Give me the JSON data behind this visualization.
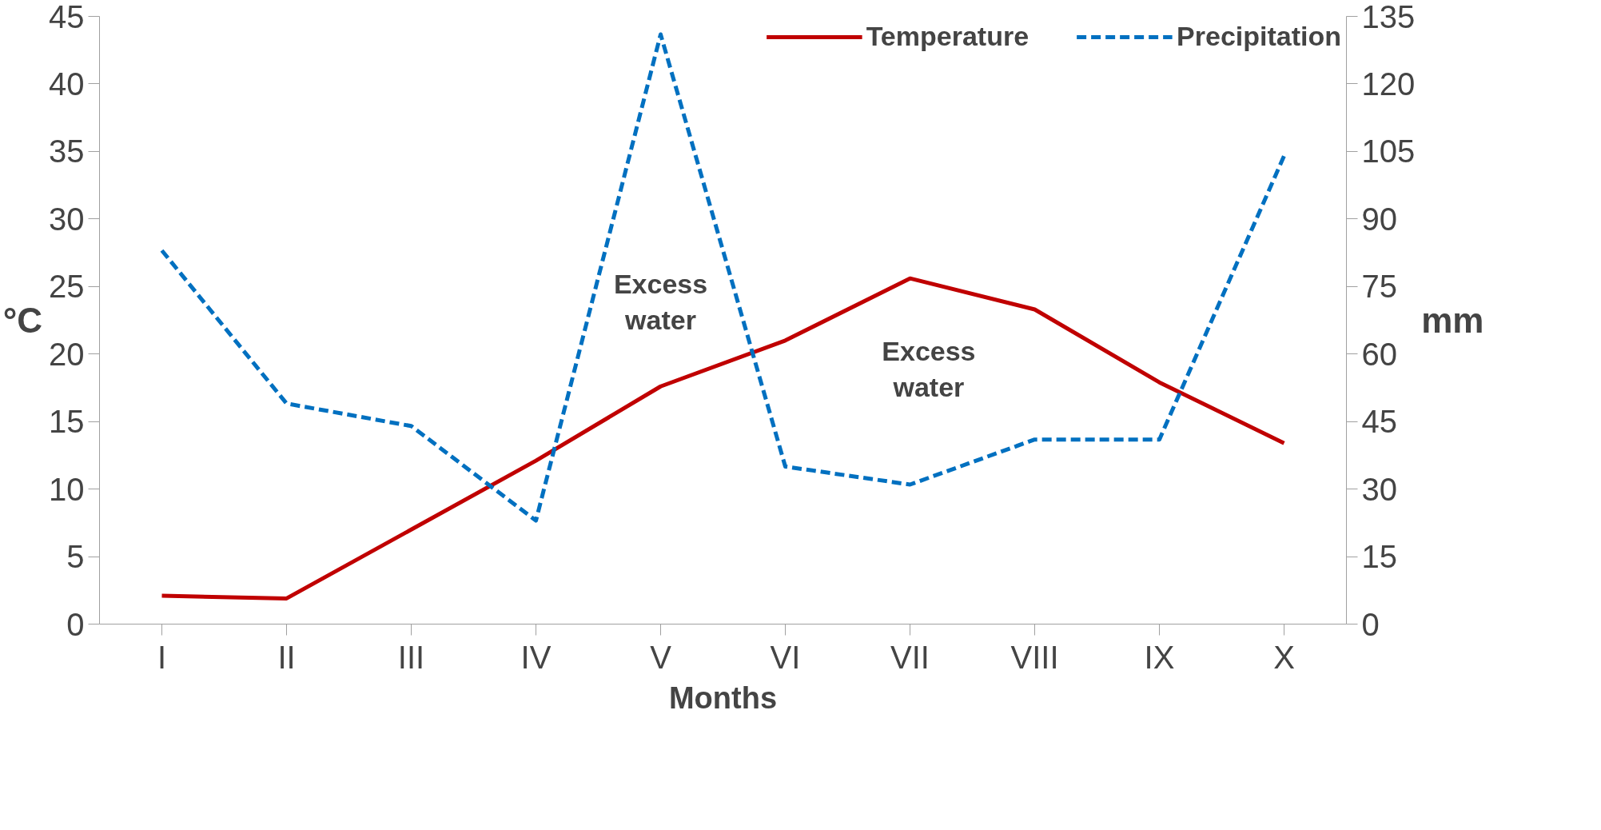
{
  "chart_data": {
    "type": "line",
    "categories": [
      "I",
      "II",
      "III",
      "IV",
      "V",
      "VI",
      "VII",
      "VIII",
      "IX",
      "X"
    ],
    "series": [
      {
        "name": "Temperature",
        "color": "#c00000",
        "values": [
          2.1,
          1.9,
          7.0,
          12.1,
          17.6,
          21.0,
          25.6,
          23.3,
          17.9,
          13.4
        ],
        "line_style": "solid"
      },
      {
        "name": "Precipitation",
        "color": "#0070c0",
        "values": [
          83,
          49,
          44,
          23,
          131,
          35,
          31,
          41,
          41,
          104
        ],
        "axis": "y2",
        "line_style": "dashed"
      }
    ],
    "xlabel": "Months",
    "ylabel": "°C",
    "y2label": "mm",
    "ylim": [
      0,
      45
    ],
    "yticks": [
      0,
      5,
      10,
      15,
      20,
      25,
      30,
      35,
      40,
      45
    ],
    "y2lim": [
      0,
      135
    ],
    "y2ticks": [
      0,
      15,
      30,
      45,
      60,
      75,
      90,
      105,
      120,
      135
    ],
    "annotations": [
      "Excess\nwater",
      "Excess\nwater"
    ],
    "legend": "top",
    "grid": false,
    "marker": "none"
  }
}
